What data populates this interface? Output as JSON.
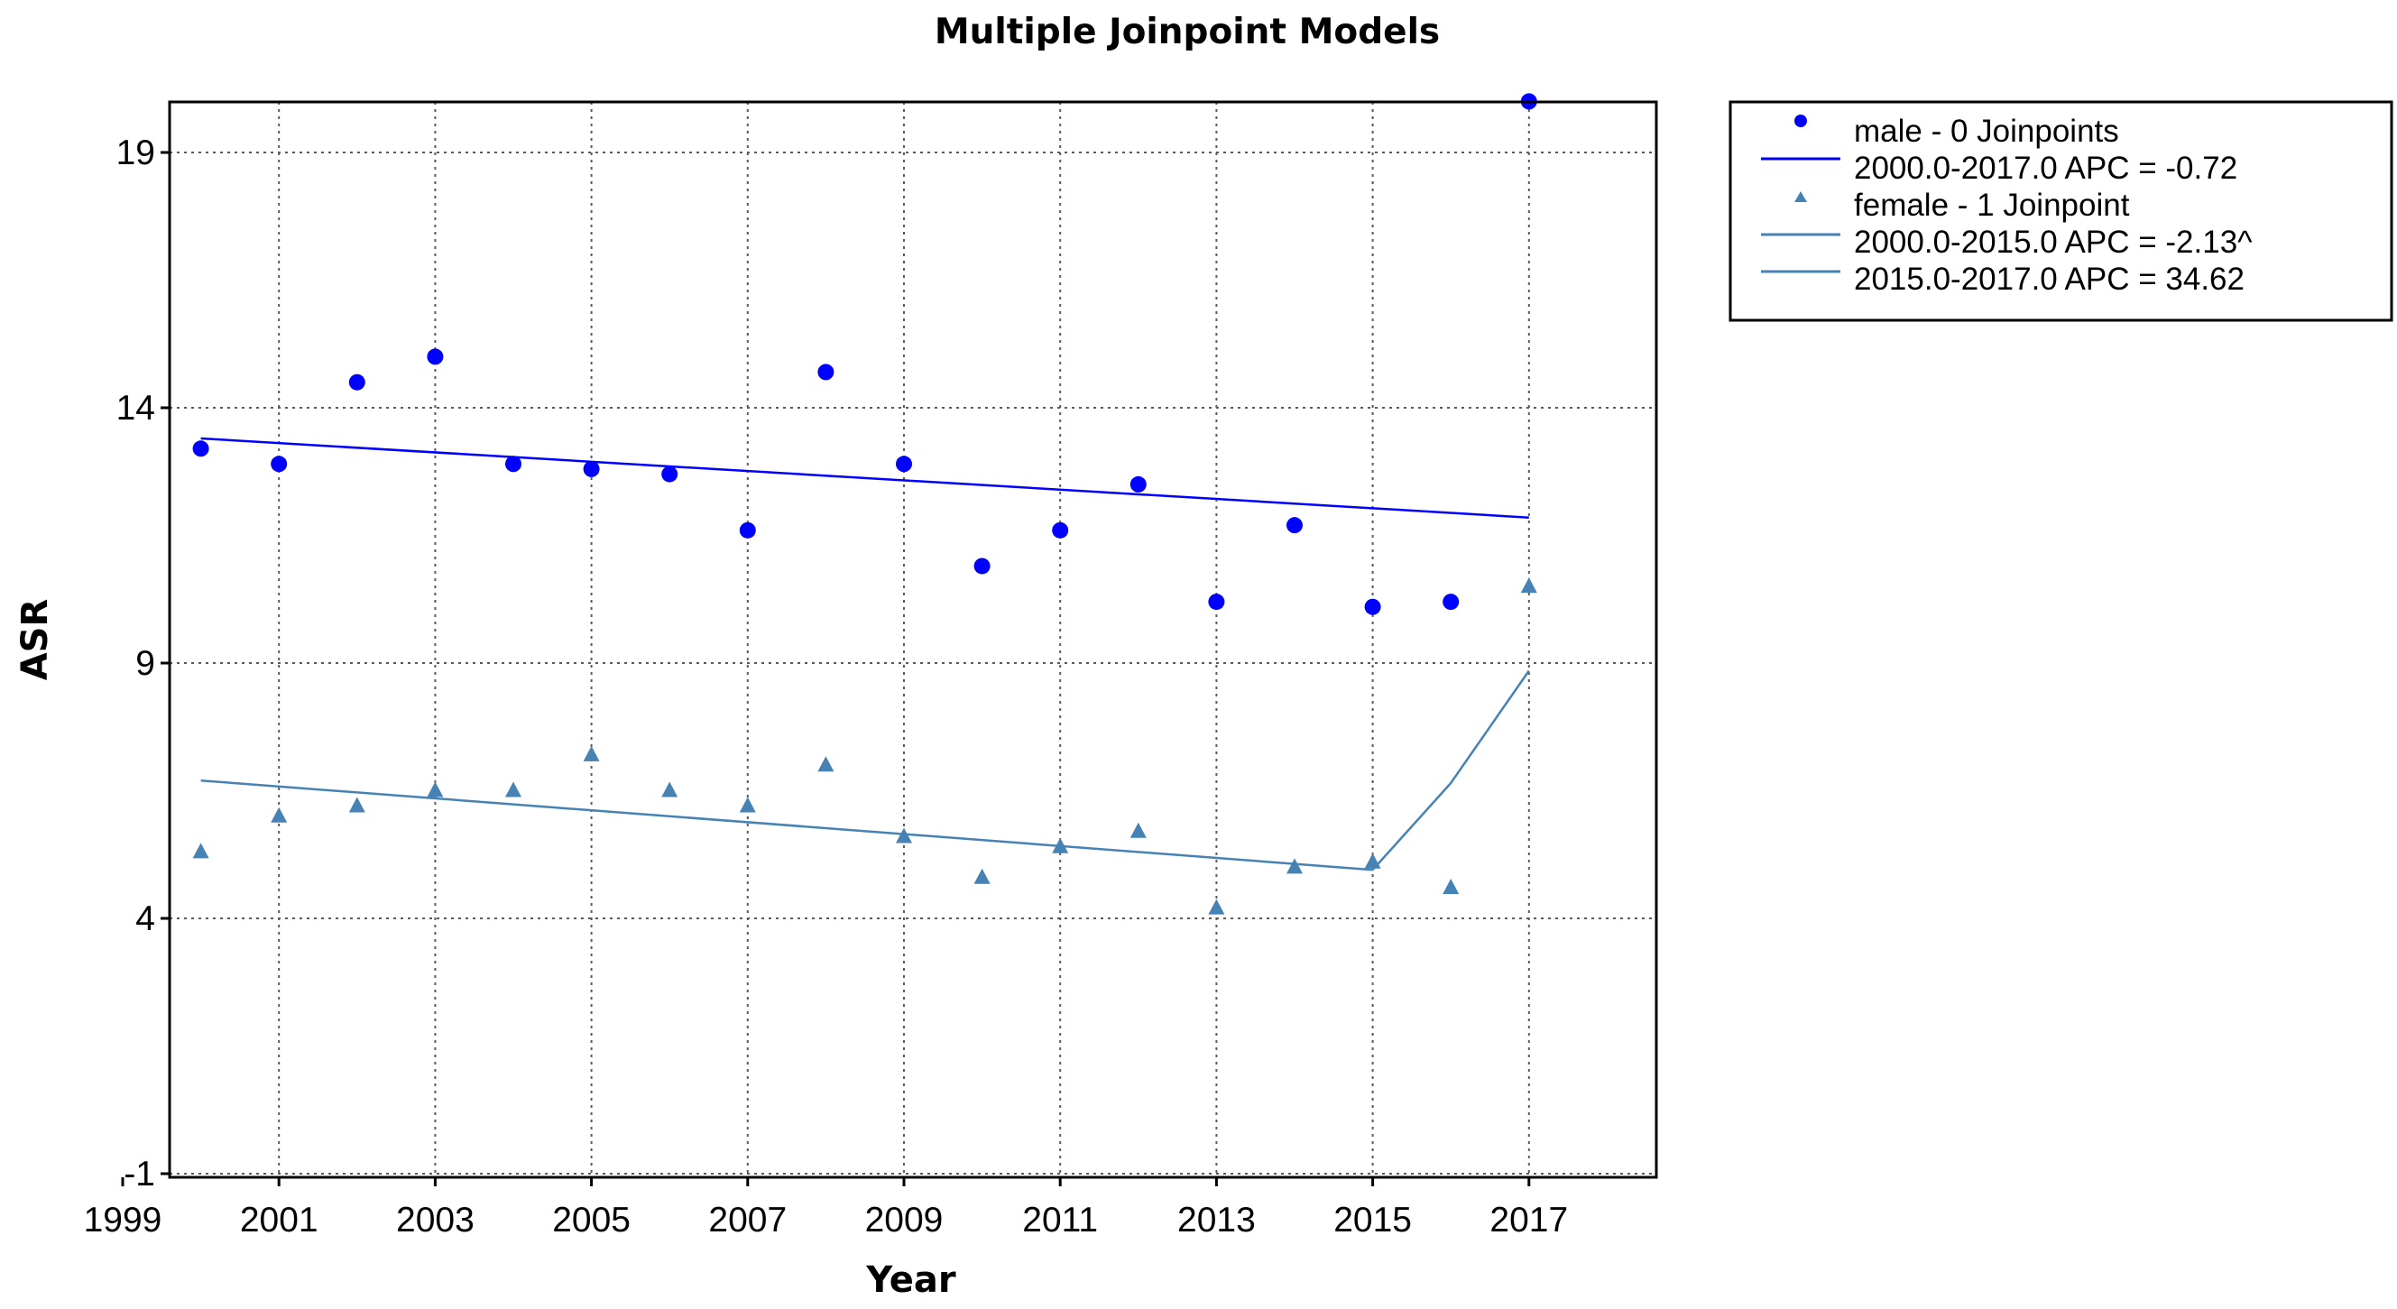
{
  "chart_data": {
    "type": "scatter",
    "title": "Multiple Joinpoint Models",
    "xlabel": "Year",
    "ylabel": "ASR",
    "xlim": [
      1999,
      2018
    ],
    "ylim": [
      -1,
      21
    ],
    "x_ticks": [
      "1999",
      "2001",
      "2003",
      "2005",
      "2007",
      "2009",
      "2011",
      "2013",
      "2015",
      "2017"
    ],
    "y_ticks": [
      "-1",
      "4",
      "9",
      "14",
      "19"
    ],
    "grid": true,
    "legend_position": "outside-top-right",
    "series": [
      {
        "name": "male - 0 Joinpoints",
        "marker": "circle",
        "color": "#0000ff",
        "x": [
          2000,
          2001,
          2002,
          2003,
          2004,
          2005,
          2006,
          2007,
          2008,
          2009,
          2010,
          2011,
          2012,
          2013,
          2014,
          2015,
          2016,
          2017
        ],
        "y": [
          13.2,
          12.9,
          14.5,
          15.0,
          12.9,
          12.8,
          12.7,
          11.6,
          14.7,
          12.9,
          10.9,
          11.6,
          12.5,
          10.2,
          11.7,
          10.1,
          10.2,
          20.0
        ]
      },
      {
        "name": "female - 1 Joinpoint",
        "marker": "triangle",
        "color": "#4682b4",
        "x": [
          2000,
          2001,
          2002,
          2003,
          2004,
          2005,
          2006,
          2007,
          2008,
          2009,
          2010,
          2011,
          2012,
          2013,
          2014,
          2015,
          2016,
          2017
        ],
        "y": [
          5.3,
          6.0,
          6.2,
          6.5,
          6.5,
          7.2,
          6.5,
          6.2,
          7.0,
          5.6,
          4.8,
          5.4,
          5.7,
          4.2,
          5.0,
          5.1,
          4.6,
          10.5
        ]
      }
    ],
    "fit_lines": [
      {
        "label": "2000.0-2017.0 APC  = -0.72",
        "color": "#0000ff",
        "points": [
          [
            2000,
            13.4
          ],
          [
            2017,
            11.85
          ]
        ]
      },
      {
        "label": "2000.0-2015.0 APC  = -2.13^",
        "color": "#4682b4",
        "points": [
          [
            2000,
            6.7
          ],
          [
            2015,
            4.95
          ]
        ]
      },
      {
        "label": "2015.0-2017.0 APC  = 34.62",
        "color": "#4682b4",
        "points": [
          [
            2015,
            4.95
          ],
          [
            2016,
            6.65
          ],
          [
            2017,
            8.85
          ]
        ]
      }
    ]
  }
}
